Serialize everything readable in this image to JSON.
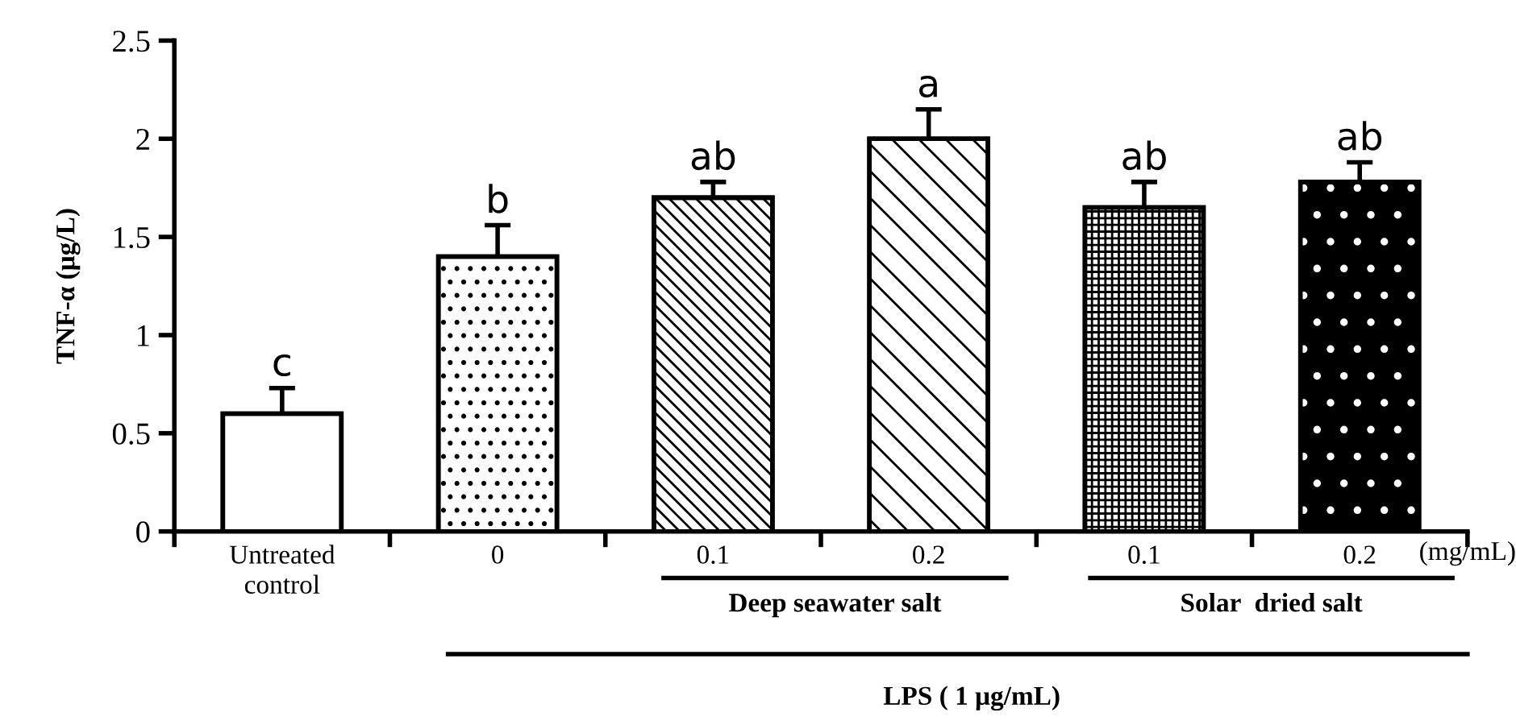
{
  "chart_data": {
    "type": "bar",
    "categories": [
      "Untreated\ncontrol",
      "0",
      "0.1",
      "0.2",
      "0.1",
      "0.2"
    ],
    "values": [
      0.6,
      1.4,
      1.7,
      2.0,
      1.65,
      1.78
    ],
    "errors": [
      [
        0.6,
        0.73
      ],
      [
        1.4,
        1.56
      ],
      [
        1.7,
        1.78
      ],
      [
        2.0,
        2.15
      ],
      [
        1.65,
        1.78
      ],
      [
        1.78,
        1.88
      ]
    ],
    "colors": [
      "#ffffff",
      "#ffffff",
      "#ffffff",
      "#ffffff",
      "#ffffff",
      "#000000"
    ],
    "ylabel": "TNF-α (μg/L)",
    "ylim": [
      0,
      2.5
    ],
    "yticks": [
      0,
      0.5,
      1,
      1.5,
      2,
      2.5
    ],
    "annotations": [
      "c",
      "b",
      "ab",
      "a",
      "ab",
      "ab",
      "(mg/mL)",
      "Deep seawater salt",
      "Solar  dried salt",
      "LPS ( 1 μg/mL)"
    ],
    "grid": false
  }
}
